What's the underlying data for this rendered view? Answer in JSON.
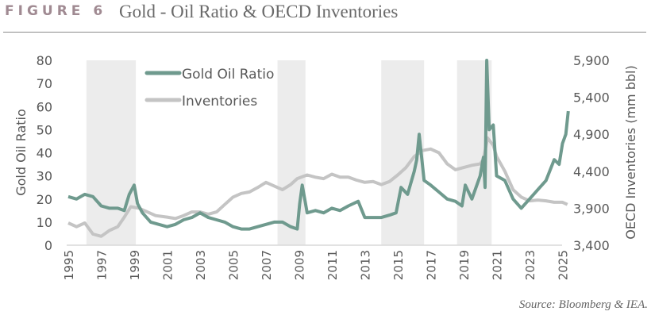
{
  "header": {
    "figure_label": "FIGURE 6",
    "title": "Gold - Oil Ratio & OECD Inventories"
  },
  "source": "Source: Bloomberg & IEA.",
  "chart_data": {
    "type": "line",
    "title": "",
    "xlabel": "",
    "ylabel": "Gold Oil Ratio",
    "y2label": "OECD Inventories (mm bbl)",
    "xlim": [
      1995,
      2025.4
    ],
    "ylim": [
      0,
      80
    ],
    "y2lim": [
      3400,
      5900
    ],
    "x_ticks": [
      1995,
      1997,
      1999,
      2001,
      2003,
      2005,
      2007,
      2009,
      2011,
      2013,
      2015,
      2017,
      2019,
      2021,
      2023,
      2025
    ],
    "y_ticks": [
      0,
      10,
      20,
      30,
      40,
      50,
      60,
      70,
      80
    ],
    "y2_ticks": [
      "3,400",
      "3,900",
      "4,400",
      "4,900",
      "5,400",
      "5,900"
    ],
    "y2_tick_values": [
      3400,
      3900,
      4400,
      4900,
      5400,
      5900
    ],
    "grid": false,
    "legend_placement": "top-left",
    "shaded_periods": [
      [
        1996.1,
        1999.1
      ],
      [
        2007.7,
        2009.4
      ],
      [
        2014.0,
        2016.6
      ],
      [
        2018.6,
        2020.7
      ]
    ],
    "colors": {
      "gold_oil_ratio": "#6f9a8e",
      "inventories": "#c4c4c4",
      "shade": "#ececec"
    },
    "series": [
      {
        "name": "Gold Oil Ratio",
        "axis": "left",
        "x": [
          1995,
          1995.5,
          1996,
          1996.5,
          1997,
          1997.5,
          1998,
          1998.4,
          1998.7,
          1999,
          1999.2,
          1999.5,
          2000,
          2000.5,
          2001,
          2001.5,
          2002,
          2002.5,
          2003,
          2003.5,
          2004,
          2004.5,
          2005,
          2005.5,
          2006,
          2006.5,
          2007,
          2007.5,
          2008,
          2008.5,
          2008.9,
          2009.05,
          2009.2,
          2009.5,
          2010,
          2010.5,
          2011,
          2011.5,
          2012,
          2012.6,
          2013,
          2013.5,
          2014,
          2014.5,
          2014.9,
          2015.2,
          2015.6,
          2016.0,
          2016.15,
          2016.3,
          2016.6,
          2017,
          2017.5,
          2018,
          2018.5,
          2018.9,
          2019.1,
          2019.5,
          2020,
          2020.2,
          2020.3,
          2020.4,
          2020.55,
          2020.8,
          2021,
          2021.5,
          2022,
          2022.5,
          2023,
          2023.5,
          2024,
          2024.5,
          2024.8,
          2025,
          2025.2,
          2025.35
        ],
        "values": [
          21,
          20,
          22,
          21,
          17,
          16,
          16,
          15,
          22,
          26,
          18,
          14,
          10,
          9,
          8,
          9,
          11,
          12,
          14,
          12,
          11,
          10,
          8,
          7,
          7,
          8,
          9,
          10,
          10,
          8,
          7,
          18,
          26,
          14,
          15,
          14,
          16,
          15,
          17,
          19,
          12,
          12,
          12,
          13,
          14,
          25,
          22,
          32,
          37,
          48,
          28,
          26,
          23,
          20,
          19,
          17,
          26,
          20,
          30,
          38,
          25,
          80,
          50,
          52,
          30,
          28,
          20,
          16,
          20,
          24,
          28,
          37,
          35,
          44,
          48,
          58
        ]
      },
      {
        "name": "Inventories",
        "axis": "right",
        "x": [
          1995,
          1995.5,
          1996,
          1996.5,
          1997,
          1997.5,
          1998,
          1998.4,
          1998.8,
          1999.3,
          1999.8,
          2000.3,
          2001,
          2001.5,
          2002,
          2002.5,
          2003,
          2003.5,
          2004,
          2004.5,
          2005,
          2005.5,
          2006,
          2006.5,
          2007,
          2007.5,
          2008,
          2008.5,
          2008.9,
          2009.5,
          2010,
          2010.5,
          2011,
          2011.5,
          2012,
          2012.5,
          2013,
          2013.5,
          2014,
          2014.5,
          2015,
          2015.5,
          2016,
          2016.5,
          2017,
          2017.5,
          2018,
          2018.5,
          2019,
          2019.5,
          2020,
          2020.2,
          2020.45,
          2020.8,
          2021,
          2021.5,
          2022,
          2022.5,
          2023,
          2023.5,
          2024,
          2024.5,
          2025,
          2025.3
        ],
        "values": [
          3700,
          3650,
          3700,
          3550,
          3520,
          3600,
          3650,
          3780,
          3920,
          3900,
          3850,
          3800,
          3780,
          3760,
          3800,
          3850,
          3850,
          3820,
          3850,
          3950,
          4050,
          4100,
          4120,
          4180,
          4250,
          4200,
          4150,
          4220,
          4300,
          4350,
          4320,
          4300,
          4360,
          4320,
          4320,
          4280,
          4250,
          4260,
          4220,
          4260,
          4350,
          4450,
          4600,
          4680,
          4700,
          4650,
          4500,
          4420,
          4450,
          4480,
          4500,
          4560,
          4850,
          4750,
          4600,
          4400,
          4150,
          4050,
          4000,
          4010,
          4000,
          3980,
          3980,
          3950
        ]
      }
    ]
  }
}
